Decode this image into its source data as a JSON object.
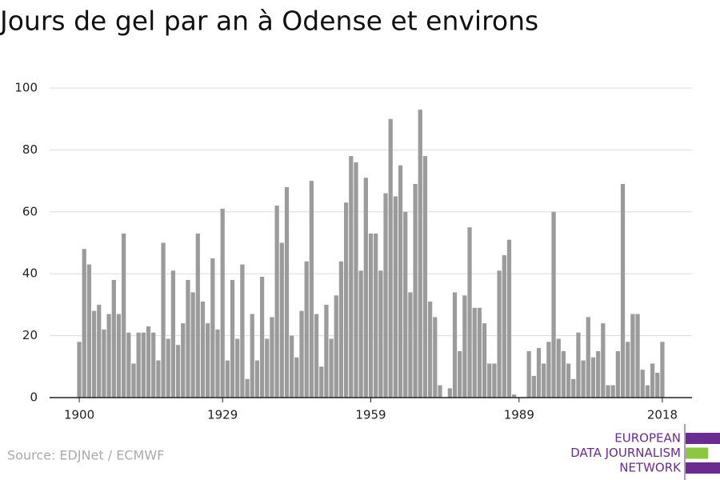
{
  "chart_data": {
    "type": "bar",
    "title": "Jours de gel par an à Odense et environs",
    "x": [
      1900,
      1901,
      1902,
      1903,
      1904,
      1905,
      1906,
      1907,
      1908,
      1909,
      1910,
      1911,
      1912,
      1913,
      1914,
      1915,
      1916,
      1917,
      1918,
      1919,
      1920,
      1921,
      1922,
      1923,
      1924,
      1925,
      1926,
      1927,
      1928,
      1929,
      1930,
      1931,
      1932,
      1933,
      1934,
      1935,
      1936,
      1937,
      1938,
      1939,
      1940,
      1941,
      1942,
      1943,
      1944,
      1945,
      1946,
      1947,
      1948,
      1949,
      1950,
      1951,
      1952,
      1953,
      1954,
      1955,
      1956,
      1957,
      1958,
      1959,
      1960,
      1961,
      1962,
      1963,
      1964,
      1965,
      1966,
      1967,
      1968,
      1969,
      1970,
      1971,
      1972,
      1973,
      1974,
      1975,
      1976,
      1977,
      1978,
      1979,
      1980,
      1981,
      1982,
      1983,
      1984,
      1985,
      1986,
      1987,
      1988,
      1989,
      1990,
      1991,
      1992,
      1993,
      1994,
      1995,
      1996,
      1997,
      1998,
      1999,
      2000,
      2001,
      2002,
      2003,
      2004,
      2005,
      2006,
      2007,
      2008,
      2009,
      2010,
      2011,
      2012,
      2013,
      2014,
      2015,
      2016,
      2017,
      2018
    ],
    "values": [
      18,
      48,
      43,
      28,
      30,
      22,
      27,
      38,
      27,
      53,
      21,
      11,
      21,
      21,
      23,
      21,
      12,
      50,
      19,
      41,
      17,
      24,
      38,
      34,
      53,
      31,
      24,
      45,
      22,
      61,
      12,
      38,
      19,
      43,
      6,
      27,
      12,
      39,
      19,
      26,
      62,
      50,
      68,
      20,
      13,
      28,
      44,
      70,
      27,
      10,
      30,
      19,
      33,
      44,
      63,
      78,
      76,
      41,
      71,
      53,
      53,
      41,
      66,
      90,
      65,
      75,
      60,
      34,
      69,
      93,
      78,
      31,
      26,
      4,
      0,
      3,
      34,
      15,
      33,
      55,
      29,
      29,
      24,
      11,
      11,
      41,
      46,
      51,
      1,
      0,
      0,
      15,
      7,
      16,
      11,
      18,
      60,
      19,
      15,
      11,
      6,
      21,
      12,
      26,
      13,
      15,
      24,
      4,
      4,
      15,
      69,
      18,
      27,
      27,
      9,
      4,
      11,
      8,
      18
    ],
    "color": "#9b9b9b",
    "xlim": [
      1894,
      2024
    ],
    "xticks": [
      1900,
      1929,
      1959,
      1989,
      2018
    ],
    "ylim": [
      0,
      100
    ],
    "yticks": [
      0,
      20,
      40,
      60,
      80,
      100
    ],
    "grid": true
  },
  "source": "Source: EDJNet / ECMWF",
  "logo": {
    "lines": [
      "EUROPEAN",
      "DATA JOURNALISM",
      "NETWORK"
    ],
    "colors": [
      "#6a2c91",
      "#8dc63f",
      "#6a2c91"
    ]
  }
}
